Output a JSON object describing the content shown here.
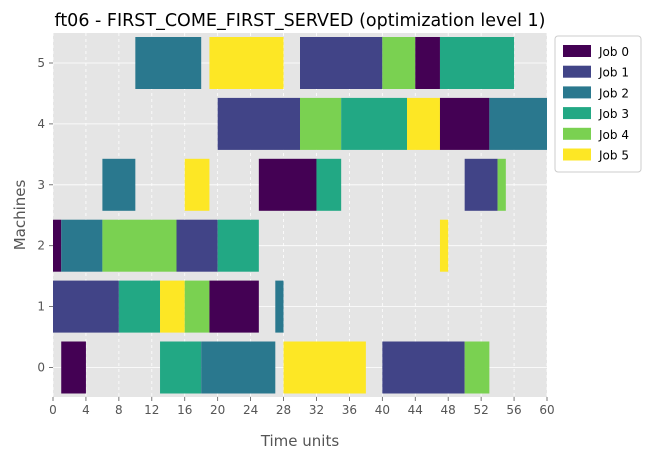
{
  "chart_data": {
    "type": "gantt",
    "title": "ft06 - FIRST_COME_FIRST_SERVED (optimization level 1)",
    "xlabel": "Time units",
    "ylabel": "Machines",
    "xlim": [
      0,
      60
    ],
    "xticks": [
      "0",
      "4",
      "8",
      "12",
      "16",
      "20",
      "24",
      "28",
      "32",
      "36",
      "40",
      "44",
      "48",
      "52",
      "56",
      "60"
    ],
    "machines": [
      "0",
      "1",
      "2",
      "3",
      "4",
      "5"
    ],
    "grid": true,
    "legend_position": "outside-upper-right",
    "jobs": [
      {
        "name": "Job 0",
        "color": "#440154"
      },
      {
        "name": "Job 1",
        "color": "#414487"
      },
      {
        "name": "Job 2",
        "color": "#2a788e"
      },
      {
        "name": "Job 3",
        "color": "#22a884"
      },
      {
        "name": "Job 4",
        "color": "#7ad151"
      },
      {
        "name": "Job 5",
        "color": "#fde725"
      }
    ],
    "tasks": [
      {
        "machine": 0,
        "job": 0,
        "start": 1,
        "end": 4
      },
      {
        "machine": 0,
        "job": 3,
        "start": 13,
        "end": 18
      },
      {
        "machine": 0,
        "job": 2,
        "start": 18,
        "end": 27
      },
      {
        "machine": 0,
        "job": 5,
        "start": 28,
        "end": 38
      },
      {
        "machine": 0,
        "job": 1,
        "start": 40,
        "end": 50
      },
      {
        "machine": 0,
        "job": 4,
        "start": 50,
        "end": 53
      },
      {
        "machine": 1,
        "job": 1,
        "start": 0,
        "end": 8
      },
      {
        "machine": 1,
        "job": 3,
        "start": 8,
        "end": 13
      },
      {
        "machine": 1,
        "job": 5,
        "start": 13,
        "end": 16
      },
      {
        "machine": 1,
        "job": 4,
        "start": 16,
        "end": 19
      },
      {
        "machine": 1,
        "job": 0,
        "start": 19,
        "end": 25
      },
      {
        "machine": 1,
        "job": 2,
        "start": 27,
        "end": 28
      },
      {
        "machine": 2,
        "job": 0,
        "start": 0,
        "end": 1
      },
      {
        "machine": 2,
        "job": 2,
        "start": 1,
        "end": 6
      },
      {
        "machine": 2,
        "job": 4,
        "start": 6,
        "end": 15
      },
      {
        "machine": 2,
        "job": 1,
        "start": 15,
        "end": 20
      },
      {
        "machine": 2,
        "job": 3,
        "start": 20,
        "end": 25
      },
      {
        "machine": 2,
        "job": 5,
        "start": 47,
        "end": 48
      },
      {
        "machine": 3,
        "job": 2,
        "start": 6,
        "end": 10
      },
      {
        "machine": 3,
        "job": 5,
        "start": 16,
        "end": 19
      },
      {
        "machine": 3,
        "job": 0,
        "start": 25,
        "end": 32
      },
      {
        "machine": 3,
        "job": 3,
        "start": 32,
        "end": 35
      },
      {
        "machine": 3,
        "job": 1,
        "start": 50,
        "end": 54
      },
      {
        "machine": 3,
        "job": 4,
        "start": 54,
        "end": 55
      },
      {
        "machine": 4,
        "job": 1,
        "start": 20,
        "end": 30
      },
      {
        "machine": 4,
        "job": 4,
        "start": 30,
        "end": 35
      },
      {
        "machine": 4,
        "job": 3,
        "start": 35,
        "end": 43
      },
      {
        "machine": 4,
        "job": 5,
        "start": 43,
        "end": 47
      },
      {
        "machine": 4,
        "job": 0,
        "start": 47,
        "end": 53
      },
      {
        "machine": 4,
        "job": 2,
        "start": 53,
        "end": 60
      },
      {
        "machine": 5,
        "job": 2,
        "start": 10,
        "end": 18
      },
      {
        "machine": 5,
        "job": 5,
        "start": 19,
        "end": 28
      },
      {
        "machine": 5,
        "job": 1,
        "start": 30,
        "end": 40
      },
      {
        "machine": 5,
        "job": 4,
        "start": 40,
        "end": 44
      },
      {
        "machine": 5,
        "job": 0,
        "start": 44,
        "end": 47
      },
      {
        "machine": 5,
        "job": 3,
        "start": 47,
        "end": 56
      }
    ]
  }
}
